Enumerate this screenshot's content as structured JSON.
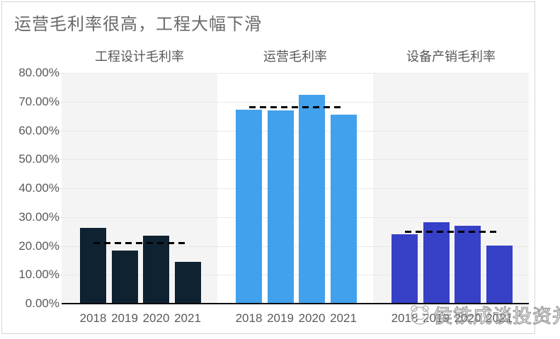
{
  "title": "运营毛利率很高，工程大幅下滑",
  "watermark": {
    "text": "侯铁成谈投资并购",
    "logo_icon": "panda-face-icon"
  },
  "colors": {
    "engineering_bar": "#0f2232",
    "operation_bar": "#41a1ec",
    "equipment_bar": "#3641c8",
    "average_line": "#000000",
    "panel_gray": "#f4f4f4",
    "text_gray": "#595959",
    "title_gray": "#6a6a6a"
  },
  "chart_data": {
    "type": "bar",
    "title": "运营毛利率很高，工程大幅下滑",
    "ylabel": "",
    "xlabel": "",
    "ylim": [
      0,
      80
    ],
    "y_tick_labels": [
      "80.00%",
      "70.00%",
      "60.00%",
      "50.00%",
      "40.00%",
      "30.00%",
      "20.00%",
      "10.00%",
      "0.00%"
    ],
    "grid": true,
    "legend_position": "none",
    "categories": [
      "2018",
      "2019",
      "2020",
      "2021"
    ],
    "value_unit": "percent",
    "groups": [
      {
        "name": "工程设计毛利率",
        "bar_color": "#0f2232",
        "panel_color": "#f4f4f4",
        "values": [
          26.2,
          18.4,
          23.5,
          14.4
        ],
        "average_line": 21.0
      },
      {
        "name": "运营毛利率",
        "bar_color": "#41a1ec",
        "panel_color": "#ffffff",
        "values": [
          67.2,
          66.9,
          72.3,
          65.6
        ],
        "average_line": 68.0
      },
      {
        "name": "设备产销毛利率",
        "bar_color": "#3641c8",
        "panel_color": "#f4f4f4",
        "values": [
          24.1,
          28.3,
          27.1,
          20.2
        ],
        "average_line": 25.0
      }
    ],
    "annotations": "dashed black line = average of group values"
  }
}
